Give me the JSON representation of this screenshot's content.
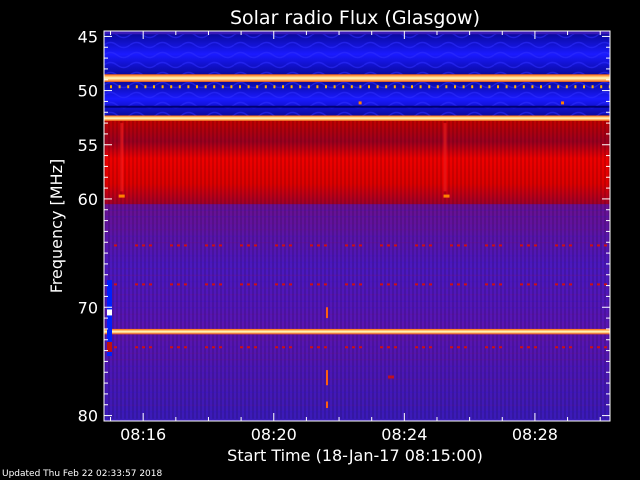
{
  "chart_data": {
    "type": "heatmap",
    "title": "Solar radio Flux (Glasgow)",
    "xlabel": "Start Time (18-Jan-17 08:15:00)",
    "ylabel": "Frequency [MHz]",
    "x_ticks": [
      "08:16",
      "08:20",
      "08:24",
      "08:28"
    ],
    "y_ticks": [
      45,
      50,
      55,
      60,
      70,
      80
    ],
    "ylim": [
      44.5,
      80.5
    ],
    "xlim_minutes_after_08_15": [
      -0.2,
      15.3
    ],
    "colormap": [
      "#000090",
      "#0000ff",
      "#5a12c0",
      "#a0005a",
      "#ff0000",
      "#ff8000",
      "#ffff00",
      "#ffffff"
    ],
    "bands": [
      {
        "from": 44.8,
        "to": 48.5,
        "intensity": "blue"
      },
      {
        "from": 48.5,
        "to": 49.2,
        "intensity": "hot"
      },
      {
        "from": 49.2,
        "to": 52.3,
        "intensity": "blue"
      },
      {
        "from": 52.3,
        "to": 52.8,
        "intensity": "hot"
      },
      {
        "from": 52.8,
        "to": 60.5,
        "intensity": "red"
      },
      {
        "from": 60.5,
        "to": 80.3,
        "intensity": "purple"
      },
      {
        "from": 72.0,
        "to": 72.5,
        "intensity": "hot"
      }
    ]
  },
  "footer": {
    "updated": "Updated Thu Feb 22 02:33:57 2018"
  }
}
